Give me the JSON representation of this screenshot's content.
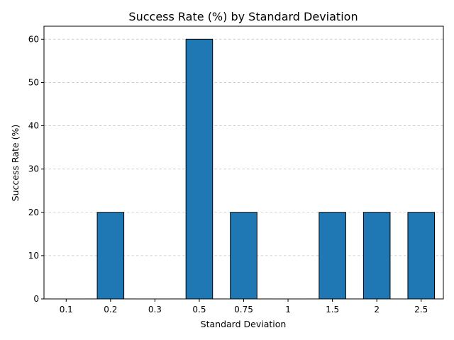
{
  "chart_data": {
    "type": "bar",
    "title": "Success Rate (%) by Standard Deviation",
    "xlabel": "Standard Deviation",
    "ylabel": "Success Rate (%)",
    "categories": [
      "0.1",
      "0.2",
      "0.3",
      "0.5",
      "0.75",
      "1",
      "1.5",
      "2",
      "2.5"
    ],
    "values": [
      0,
      20,
      0,
      60,
      20,
      0,
      20,
      20,
      20
    ],
    "ylim": [
      0,
      63
    ],
    "yticks": [
      0,
      10,
      20,
      30,
      40,
      50,
      60
    ],
    "grid": true,
    "grid_axis": "y",
    "legend": "none",
    "colors": {
      "bar_fill": "#1f77b4",
      "bar_edge": "#000000",
      "grid": "#b0b0b0",
      "axis": "#000000"
    }
  }
}
